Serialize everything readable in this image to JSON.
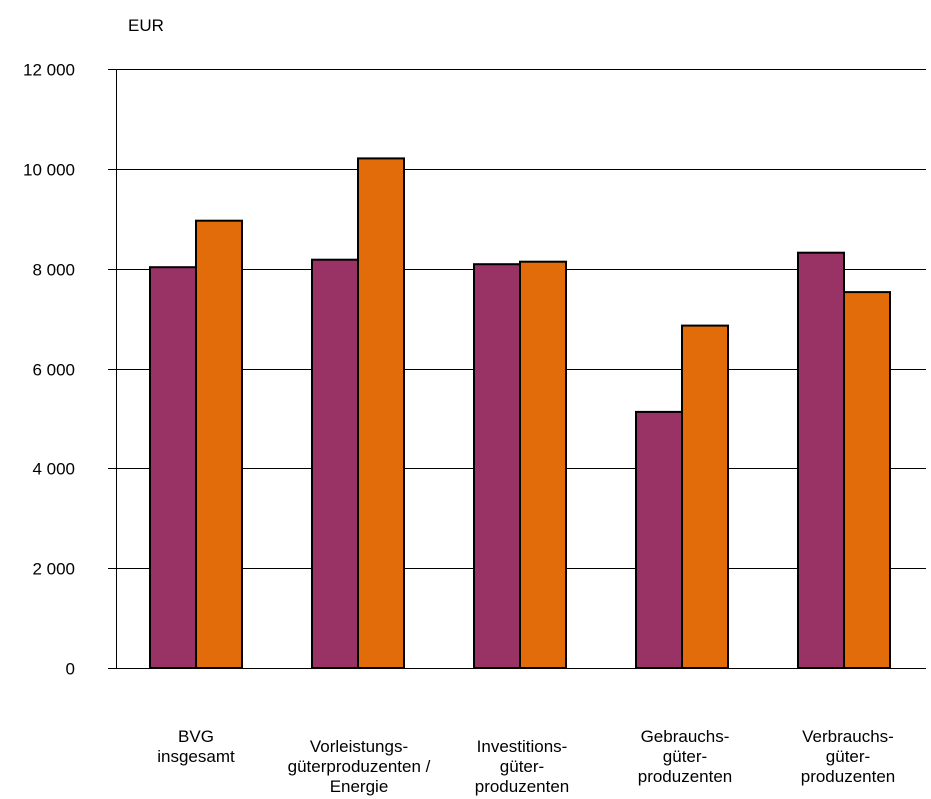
{
  "chart_data": {
    "type": "bar",
    "ylabel": "EUR",
    "ylim": [
      0,
      12000
    ],
    "yticks": [
      0,
      2000,
      4000,
      6000,
      8000,
      10000,
      12000
    ],
    "ytick_labels": [
      "0",
      "2 000",
      "4 000",
      "6 000",
      "8 000",
      "10 000",
      "12 000"
    ],
    "categories": [
      "BVG\ninsgesamt",
      "Vorleistungs-\ngüterproduzenten /\nEnergie",
      "Investitions-\ngüter-\nproduzenten",
      "Gebrauchs-\ngüter-\nproduzenten",
      "Verbrauchs-\ngüter-\nproduzenten"
    ],
    "series": [
      {
        "values": [
          8030,
          8180,
          8090,
          5130,
          8320
        ],
        "color": "#993366"
      },
      {
        "values": [
          8960,
          10210,
          8140,
          6860,
          7530
        ],
        "color": "#E36C0A"
      }
    ],
    "grid": true,
    "gridline_color": "#000000",
    "legend": "none"
  }
}
